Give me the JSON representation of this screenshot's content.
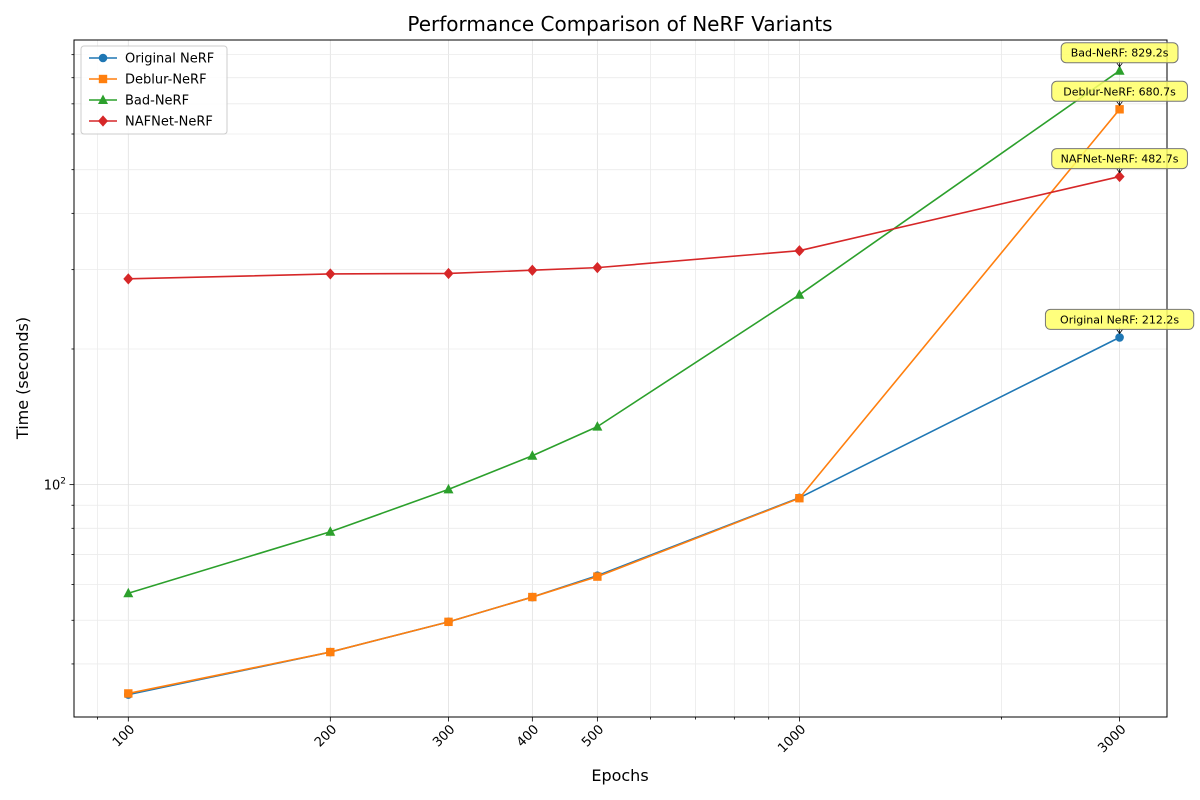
{
  "chart_data": {
    "type": "line",
    "title": "Performance Comparison of NeRF Variants",
    "xlabel": "Epochs",
    "ylabel": "Time (seconds)",
    "x_scale": "log",
    "y_scale": "log",
    "x": [
      100,
      200,
      300,
      400,
      500,
      1000,
      3000
    ],
    "x_tick_labels": [
      "100",
      "200",
      "300",
      "400",
      "500",
      "1000",
      "3000"
    ],
    "y_tick_labels": [
      {
        "value": 100,
        "base": "10",
        "exp": "2"
      }
    ],
    "xlim": [
      83,
      3530
    ],
    "ylim": [
      30.5,
      970
    ],
    "grid": true,
    "legend_position": "top-left",
    "series": [
      {
        "name": "Original NeRF",
        "color": "#1f77b4",
        "marker": "circle",
        "values": [
          34.2,
          42.5,
          49.6,
          56.3,
          62.8,
          93.5,
          212.2
        ]
      },
      {
        "name": "Deblur-NeRF",
        "color": "#ff7f0e",
        "marker": "square",
        "values": [
          34.4,
          42.5,
          49.6,
          56.3,
          62.5,
          93.3,
          680.7
        ]
      },
      {
        "name": "Bad-NeRF",
        "color": "#2ca02c",
        "marker": "triangle",
        "values": [
          57.4,
          78.6,
          97.6,
          115.9,
          134.5,
          263.8,
          829.2
        ]
      },
      {
        "name": "NAFNet-NeRF",
        "color": "#d62728",
        "marker": "diamond",
        "values": [
          286.2,
          293.5,
          294.2,
          299.1,
          303.1,
          330.5,
          482.7
        ]
      }
    ],
    "annotations": [
      {
        "series": 2,
        "text": "Bad-NeRF: 829.2s"
      },
      {
        "series": 1,
        "text": "Deblur-NeRF: 680.7s"
      },
      {
        "series": 3,
        "text": "NAFNet-NeRF: 482.7s"
      },
      {
        "series": 0,
        "text": "Original NeRF: 212.2s"
      }
    ]
  }
}
